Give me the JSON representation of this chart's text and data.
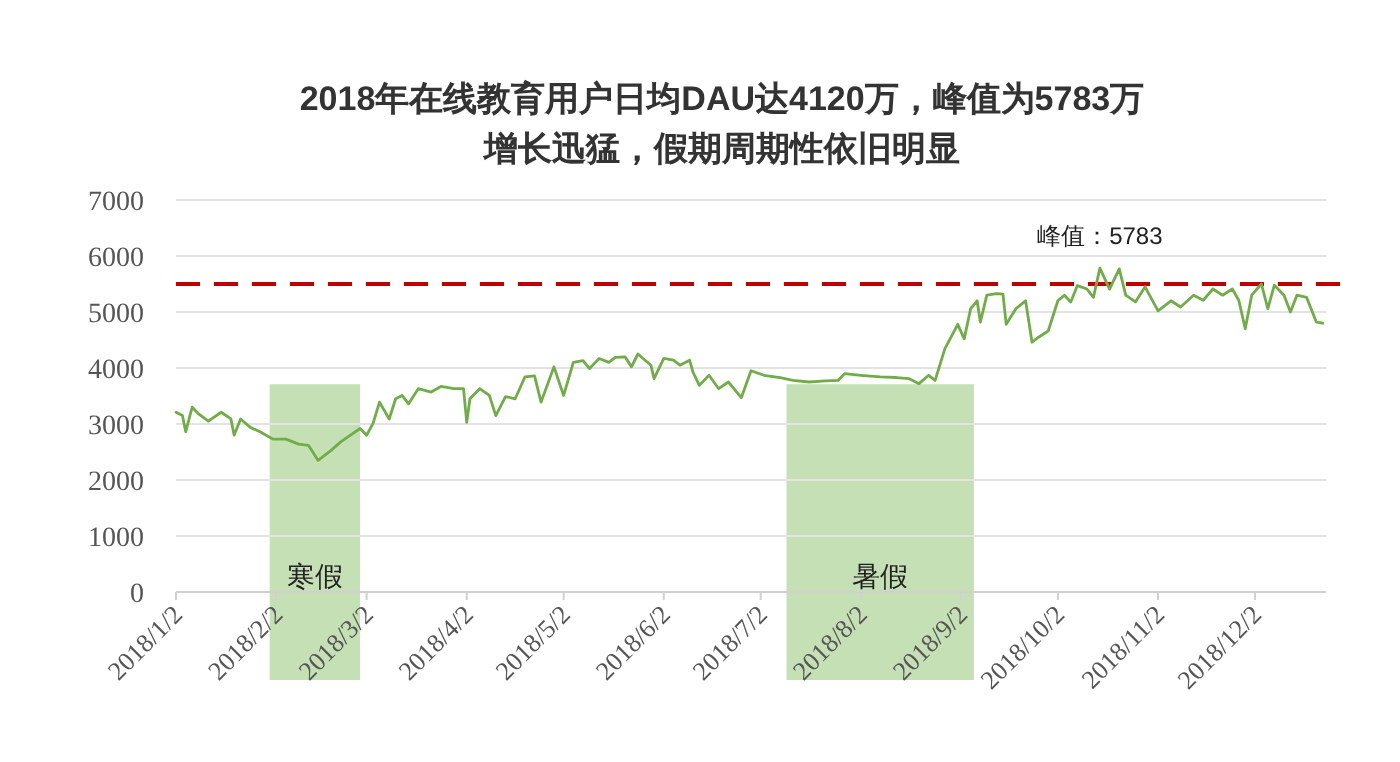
{
  "chart_data": {
    "type": "line",
    "title": "2018年在线教育用户日均DAU达4120万，峰值为5783万",
    "subtitle": "增长迅猛，假期周期性依旧明显",
    "x": [
      "2018-01-02",
      "2018-01-04",
      "2018-01-05",
      "2018-01-07",
      "2018-01-09",
      "2018-01-12",
      "2018-01-16",
      "2018-01-19",
      "2018-01-20",
      "2018-01-22",
      "2018-01-25",
      "2018-01-28",
      "2018-02-01",
      "2018-02-05",
      "2018-02-09",
      "2018-02-12",
      "2018-02-15",
      "2018-02-19",
      "2018-02-22",
      "2018-02-25",
      "2018-02-28",
      "2018-03-02",
      "2018-03-04",
      "2018-03-06",
      "2018-03-09",
      "2018-03-11",
      "2018-03-13",
      "2018-03-15",
      "2018-03-18",
      "2018-03-22",
      "2018-03-25",
      "2018-03-29",
      "2018-04-01",
      "2018-04-02",
      "2018-04-03",
      "2018-04-06",
      "2018-04-09",
      "2018-04-11",
      "2018-04-14",
      "2018-04-17",
      "2018-04-20",
      "2018-04-23",
      "2018-04-25",
      "2018-04-29",
      "2018-05-02",
      "2018-05-05",
      "2018-05-08",
      "2018-05-10",
      "2018-05-13",
      "2018-05-16",
      "2018-05-18",
      "2018-05-21",
      "2018-05-23",
      "2018-05-25",
      "2018-05-29",
      "2018-05-30",
      "2018-06-02",
      "2018-06-05",
      "2018-06-07",
      "2018-06-10",
      "2018-06-11",
      "2018-06-13",
      "2018-06-16",
      "2018-06-19",
      "2018-06-22",
      "2018-06-26",
      "2018-06-29",
      "2018-07-03",
      "2018-07-08",
      "2018-07-12",
      "2018-07-17",
      "2018-07-22",
      "2018-07-26",
      "2018-07-28",
      "2018-08-02",
      "2018-08-08",
      "2018-08-13",
      "2018-08-17",
      "2018-08-20",
      "2018-08-23",
      "2018-08-25",
      "2018-08-28",
      "2018-09-01",
      "2018-09-03",
      "2018-09-05",
      "2018-09-07",
      "2018-09-08",
      "2018-09-10",
      "2018-09-13",
      "2018-09-15",
      "2018-09-16",
      "2018-09-19",
      "2018-09-22",
      "2018-09-24",
      "2018-09-26",
      "2018-09-29",
      "2018-10-02",
      "2018-10-04",
      "2018-10-06",
      "2018-10-08",
      "2018-10-11",
      "2018-10-13",
      "2018-10-15",
      "2018-10-18",
      "2018-10-21",
      "2018-10-23",
      "2018-10-26",
      "2018-10-29",
      "2018-11-02",
      "2018-11-06",
      "2018-11-09",
      "2018-11-13",
      "2018-11-16",
      "2018-11-19",
      "2018-11-22",
      "2018-11-25",
      "2018-11-27",
      "2018-11-29",
      "2018-12-01",
      "2018-12-04",
      "2018-12-06",
      "2018-12-08",
      "2018-12-11",
      "2018-12-13",
      "2018-12-15",
      "2018-12-18",
      "2018-12-21",
      "2018-12-23"
    ],
    "series": [
      {
        "color": "#70ad47",
        "values": [
          3210,
          3150,
          2860,
          3300,
          3180,
          3050,
          3210,
          3090,
          2800,
          3090,
          2940,
          2860,
          2730,
          2730,
          2640,
          2620,
          2350,
          2530,
          2680,
          2800,
          2920,
          2800,
          3010,
          3390,
          3090,
          3450,
          3510,
          3360,
          3630,
          3570,
          3670,
          3630,
          3630,
          3030,
          3450,
          3630,
          3510,
          3150,
          3490,
          3450,
          3840,
          3860,
          3390,
          4020,
          3510,
          4100,
          4130,
          3990,
          4170,
          4100,
          4190,
          4200,
          4020,
          4250,
          4050,
          3810,
          4170,
          4140,
          4050,
          4140,
          3930,
          3690,
          3870,
          3630,
          3750,
          3470,
          3950,
          3870,
          3830,
          3780,
          3750,
          3770,
          3780,
          3900,
          3870,
          3840,
          3830,
          3810,
          3720,
          3870,
          3780,
          4340,
          4780,
          4520,
          5060,
          5200,
          4820,
          5300,
          5330,
          5320,
          4780,
          5060,
          5200,
          4460,
          4550,
          4660,
          5200,
          5300,
          5180,
          5470,
          5410,
          5260,
          5783,
          5410,
          5770,
          5300,
          5180,
          5450,
          5020,
          5200,
          5090,
          5300,
          5210,
          5410,
          5300,
          5410,
          5210,
          4700,
          5300,
          5500,
          5060,
          5480,
          5300,
          5000,
          5300,
          5260,
          4820,
          4800
        ]
      }
    ],
    "xlim": [
      "2018-01-02",
      "2018-12-24"
    ],
    "xticks": [
      {
        "value": "2018-01-02",
        "label": "2018/1/2"
      },
      {
        "value": "2018-02-02",
        "label": "2018/2/2"
      },
      {
        "value": "2018-03-02",
        "label": "2018/3/2"
      },
      {
        "value": "2018-04-02",
        "label": "2018/4/2"
      },
      {
        "value": "2018-05-02",
        "label": "2018/5/2"
      },
      {
        "value": "2018-06-02",
        "label": "2018/6/2"
      },
      {
        "value": "2018-07-02",
        "label": "2018/7/2"
      },
      {
        "value": "2018-08-02",
        "label": "2018/8/2"
      },
      {
        "value": "2018-09-02",
        "label": "2018/9/2"
      },
      {
        "value": "2018-10-02",
        "label": "2018/10/2"
      },
      {
        "value": "2018-11-02",
        "label": "2018/11/2"
      },
      {
        "value": "2018-12-02",
        "label": "2018/12/2"
      }
    ],
    "ylim": [
      0,
      7000
    ],
    "yticks": [
      0,
      1000,
      2000,
      3000,
      4000,
      5000,
      6000,
      7000
    ],
    "grid": "y",
    "marker": "none",
    "line_style": "solid",
    "ref_lines": [
      {
        "axis": "y",
        "value": 5500,
        "color": "#c00000",
        "line_style": "dashed"
      }
    ],
    "bands": [
      {
        "axis": "x",
        "from": "2018-01-31",
        "to": "2018-02-28",
        "label": "寒假",
        "color": "#c5e0b4"
      },
      {
        "axis": "x",
        "from": "2018-07-10",
        "to": "2018-09-06",
        "label": "暑假",
        "color": "#c5e0b4"
      }
    ],
    "annotations": [
      {
        "text": "峰值：5783",
        "x": "2018-10-15",
        "y": 5783
      }
    ]
  }
}
